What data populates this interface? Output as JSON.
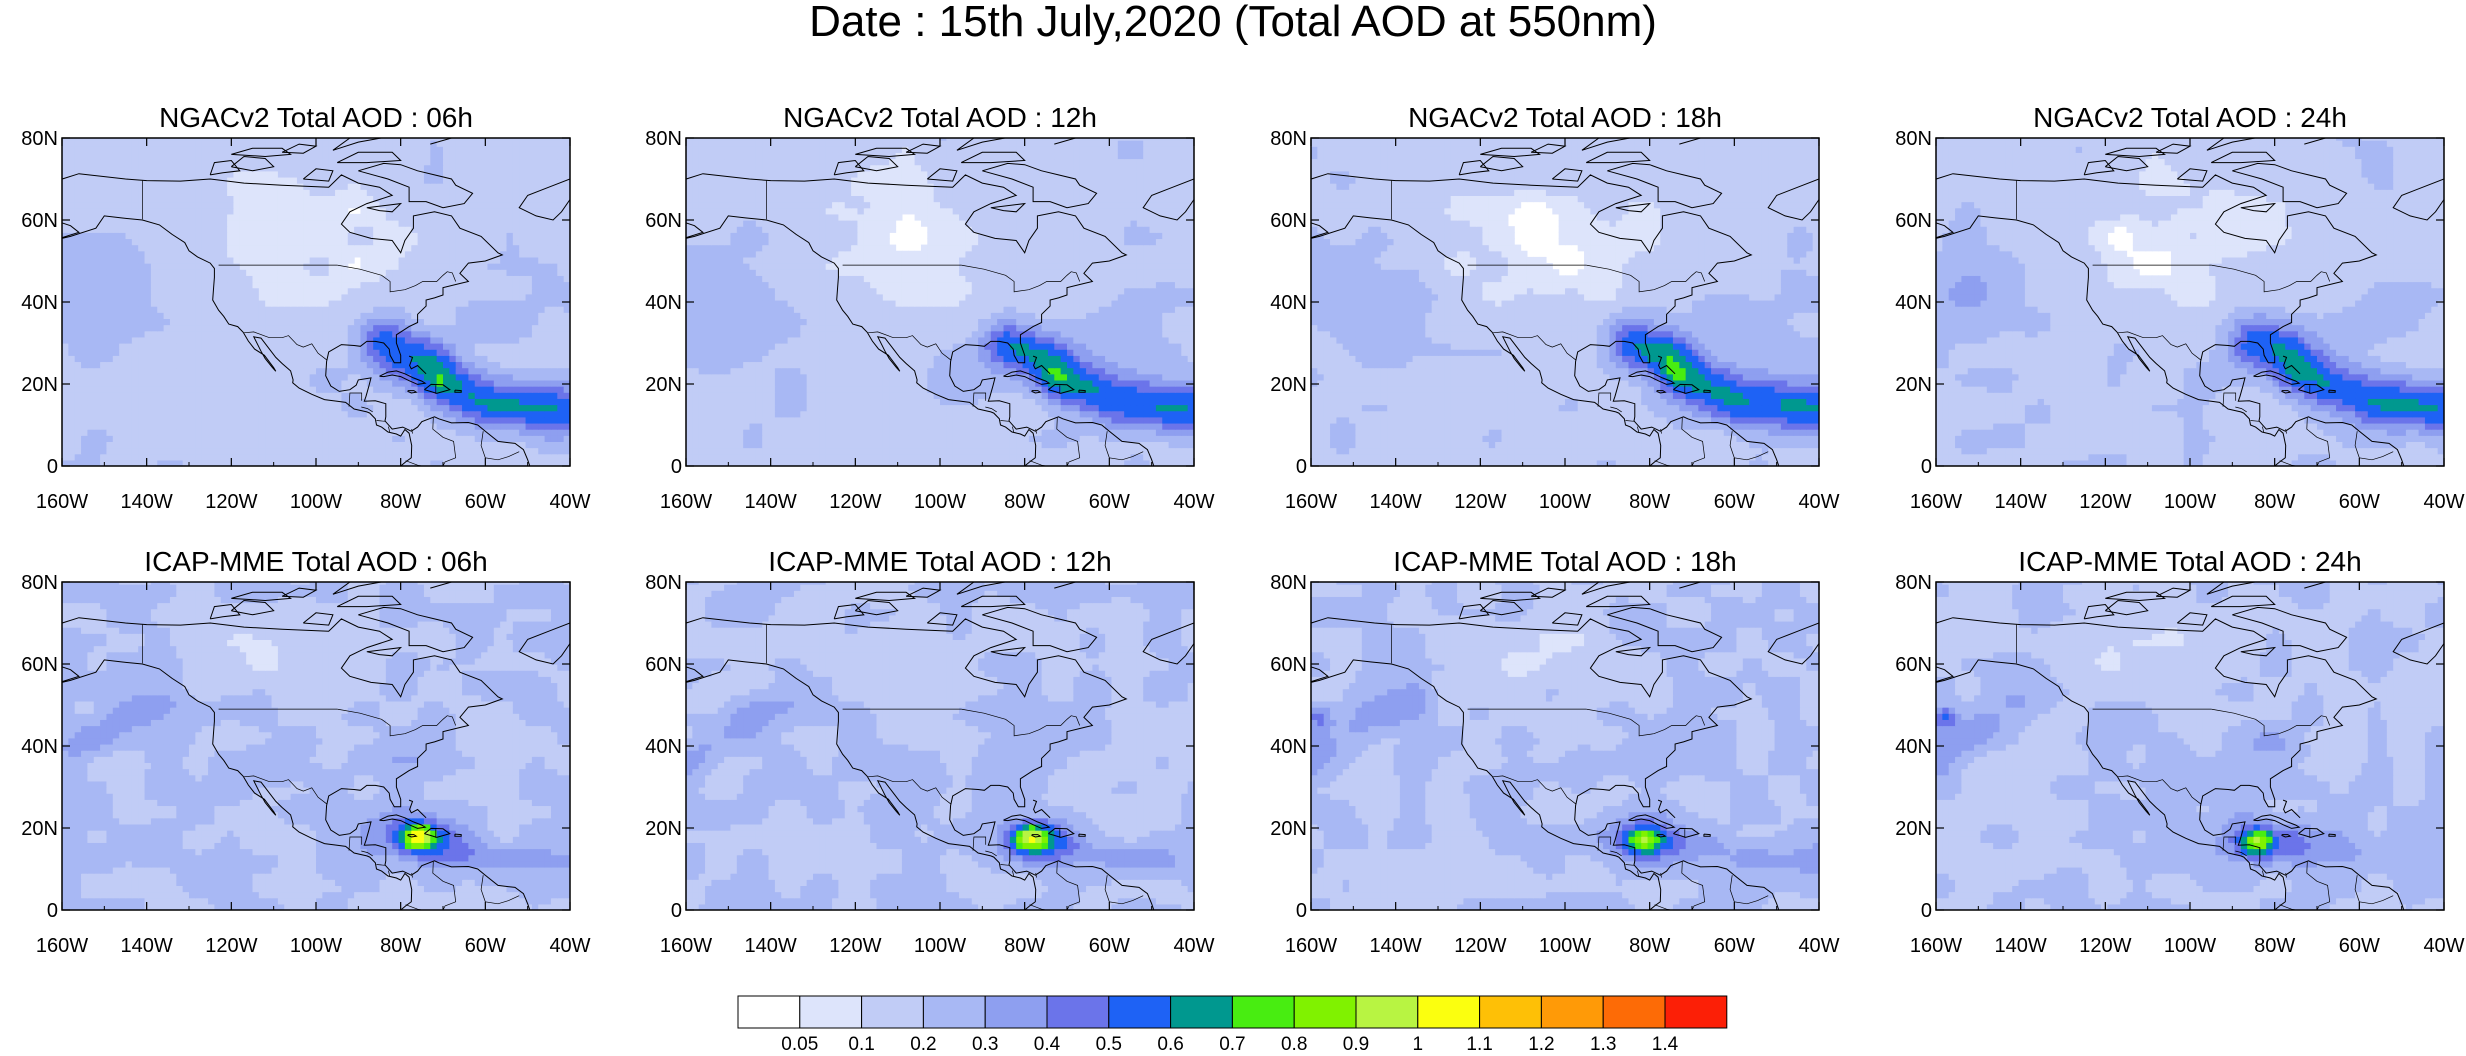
{
  "title": "Date : 15th July,2020 (Total AOD at 550nm)",
  "panels": [
    {
      "title": "NGACv2 Total AOD : 06h",
      "model": "ngac",
      "hour": 6
    },
    {
      "title": "NGACv2 Total AOD : 12h",
      "model": "ngac",
      "hour": 12
    },
    {
      "title": "NGACv2 Total AOD : 18h",
      "model": "ngac",
      "hour": 18
    },
    {
      "title": "NGACv2 Total AOD : 24h",
      "model": "ngac",
      "hour": 24
    },
    {
      "title": "ICAP-MME Total AOD : 06h",
      "model": "icap",
      "hour": 6
    },
    {
      "title": "ICAP-MME Total AOD : 12h",
      "model": "icap",
      "hour": 12
    },
    {
      "title": "ICAP-MME Total AOD : 18h",
      "model": "icap",
      "hour": 18
    },
    {
      "title": "ICAP-MME Total AOD : 24h",
      "model": "icap",
      "hour": 24
    }
  ],
  "map_extent": {
    "lon": [
      -160,
      -40
    ],
    "lat": [
      0,
      80
    ]
  },
  "lon_ticks": [
    "160W",
    "140W",
    "120W",
    "100W",
    "80W",
    "60W",
    "40W"
  ],
  "lat_ticks": [
    "0",
    "20N",
    "40N",
    "60N",
    "80N"
  ],
  "colorbar": {
    "levels": [
      "0.05",
      "0.1",
      "0.2",
      "0.3",
      "0.4",
      "0.5",
      "0.6",
      "0.7",
      "0.8",
      "0.9",
      "1",
      "1.1",
      "1.2",
      "1.3",
      "1.4"
    ],
    "colors": [
      "#ffffff",
      "#dde4fb",
      "#c1ccf6",
      "#a8b8f4",
      "#8e9ff0",
      "#6b74ea",
      "#1e62f5",
      "#00988f",
      "#48ed11",
      "#80f200",
      "#b8f442",
      "#fbff0f",
      "#fec006",
      "#ff9a07",
      "#fd6b06",
      "#fc1f06"
    ]
  }
}
